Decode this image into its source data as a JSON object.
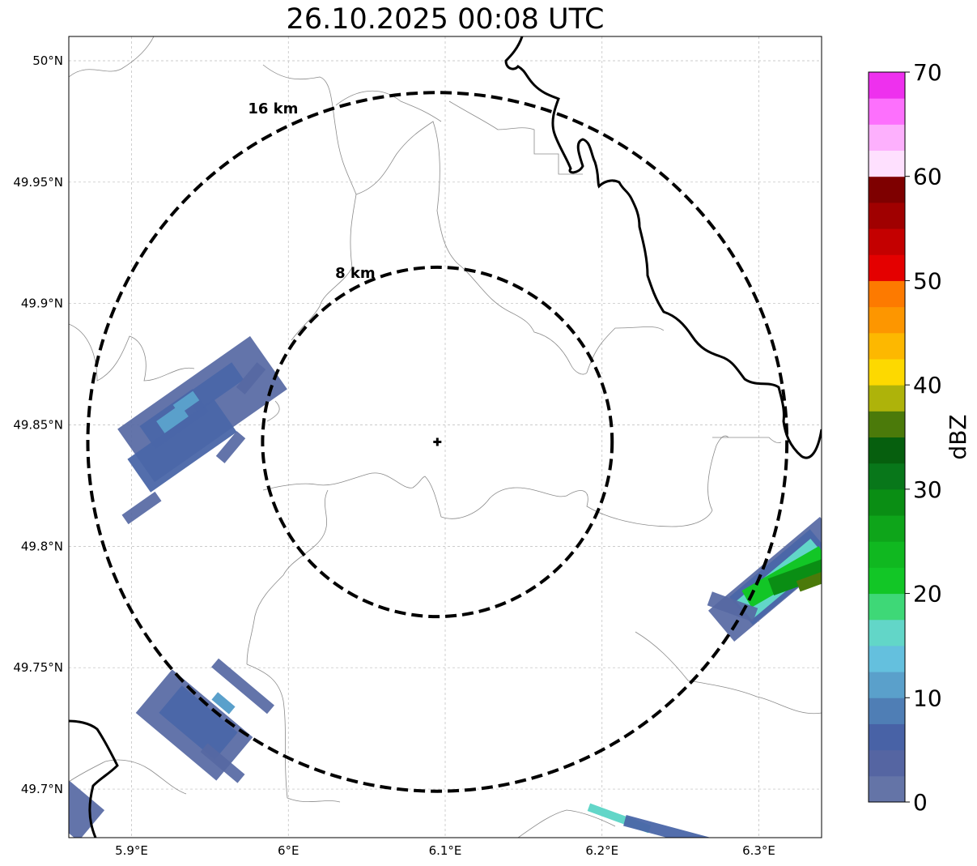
{
  "title": "26.10.2025 00:08 UTC",
  "map": {
    "lon_range": [
      5.86,
      6.34
    ],
    "lat_range": [
      49.68,
      50.01
    ],
    "lon_ticks": [
      {
        "value": 5.9,
        "label": "5.9°E"
      },
      {
        "value": 6.0,
        "label": "6°E"
      },
      {
        "value": 6.1,
        "label": "6.1°E"
      },
      {
        "value": 6.2,
        "label": "6.2°E"
      },
      {
        "value": 6.3,
        "label": "6.3°E"
      }
    ],
    "lat_ticks": [
      {
        "value": 50.0,
        "label": "50°N"
      },
      {
        "value": 49.95,
        "label": "49.95°N"
      },
      {
        "value": 49.9,
        "label": "49.9°N"
      },
      {
        "value": 49.85,
        "label": "49.85°N"
      },
      {
        "value": 49.8,
        "label": "49.8°N"
      },
      {
        "value": 49.75,
        "label": "49.75°N"
      },
      {
        "value": 49.7,
        "label": "49.7°N"
      }
    ],
    "radar_site": {
      "lon": 6.095,
      "lat": 49.843
    },
    "range_rings": [
      {
        "label": "8 km",
        "radius_km": 8
      },
      {
        "label": "16 km",
        "radius_km": 16
      }
    ],
    "grid": true
  },
  "colorbar": {
    "label": "dBZ",
    "min": 0,
    "max": 70,
    "step": 2.5,
    "ticks": [
      {
        "value": 0,
        "label": "0"
      },
      {
        "value": 10,
        "label": "10"
      },
      {
        "value": 20,
        "label": "20"
      },
      {
        "value": 30,
        "label": "30"
      },
      {
        "value": 40,
        "label": "40"
      },
      {
        "value": 50,
        "label": "50"
      },
      {
        "value": 60,
        "label": "60"
      },
      {
        "value": 70,
        "label": "70"
      }
    ],
    "colors": [
      "#6474a7",
      "#5565a2",
      "#4862a6",
      "#4f7eb5",
      "#5aa0cb",
      "#64c0de",
      "#62d6c8",
      "#3ed877",
      "#12c626",
      "#10b820",
      "#0ea51a",
      "#0a8e14",
      "#08771a",
      "#065f0e",
      "#4b7a0a",
      "#aeb30a",
      "#fdd900",
      "#fdb800",
      "#fd9600",
      "#fd7a00",
      "#e40000",
      "#c40000",
      "#a00000",
      "#7e0000",
      "#fee0fe",
      "#fdb0fd",
      "#fd70fd",
      "#ee30ee"
    ]
  },
  "echo_colors": {
    "low": "#5668a3",
    "mid": "#4a66a8",
    "light": "#5aa0cb",
    "cyan": "#62d6c8",
    "green": "#12c626",
    "dgreen": "#0a8e14",
    "olive": "#4b7a0a"
  }
}
